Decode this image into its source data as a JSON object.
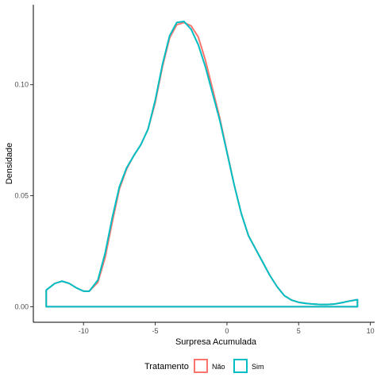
{
  "chart_data": {
    "type": "area",
    "xlabel": "Surpresa Acumulada",
    "ylabel": "Densidade",
    "xlim": [
      -13.5,
      10.3
    ],
    "ylim": [
      -0.007,
      0.136
    ],
    "x_ticks": [
      -10,
      -5,
      0,
      5,
      10
    ],
    "x_tick_labels": [
      "-10",
      "-5",
      "0",
      "5",
      "10"
    ],
    "y_ticks": [
      0.0,
      0.05,
      0.1
    ],
    "y_tick_labels": [
      "0.00",
      "0.05",
      "0.10"
    ],
    "grid": false,
    "legend": {
      "title": "Tratamento",
      "position": "bottom",
      "entries": [
        {
          "label": "Não",
          "color": "#F8766D"
        },
        {
          "label": "Sim",
          "color": "#00BFC4"
        }
      ]
    },
    "series": [
      {
        "name": "Não",
        "color": "#F8766D",
        "x": [
          -12.6,
          -12.0,
          -11.5,
          -11.0,
          -10.5,
          -10.0,
          -9.6,
          -9.0,
          -8.5,
          -8.0,
          -7.5,
          -7.0,
          -6.5,
          -6.0,
          -5.5,
          -5.0,
          -4.5,
          -4.0,
          -3.5,
          -3.0,
          -2.5,
          -2.0,
          -1.5,
          -1.0,
          -0.5,
          0.0,
          0.5,
          1.0,
          1.5,
          2.0,
          2.5,
          3.0,
          3.5,
          4.0,
          4.5,
          5.0,
          5.5,
          6.0,
          6.5,
          7.0,
          7.5,
          8.0,
          8.5,
          9.1
        ],
        "y": [
          0.0075,
          0.0105,
          0.0115,
          0.0105,
          0.0085,
          0.007,
          0.007,
          0.011,
          0.022,
          0.038,
          0.053,
          0.062,
          0.068,
          0.073,
          0.08,
          0.092,
          0.108,
          0.121,
          0.127,
          0.128,
          0.1265,
          0.1215,
          0.111,
          0.098,
          0.085,
          0.07,
          0.055,
          0.042,
          0.032,
          0.026,
          0.02,
          0.014,
          0.009,
          0.005,
          0.003,
          0.002,
          0.0015,
          0.0012,
          0.001,
          0.001,
          0.0012,
          0.0018,
          0.0025,
          0.0032
        ]
      },
      {
        "name": "Sim",
        "color": "#00BFC4",
        "x": [
          -12.6,
          -12.0,
          -11.5,
          -11.0,
          -10.5,
          -10.0,
          -9.6,
          -9.0,
          -8.5,
          -8.0,
          -7.5,
          -7.0,
          -6.5,
          -6.0,
          -5.5,
          -5.0,
          -4.5,
          -4.0,
          -3.5,
          -3.0,
          -2.5,
          -2.0,
          -1.5,
          -1.0,
          -0.5,
          0.0,
          0.5,
          1.0,
          1.5,
          2.0,
          2.5,
          3.0,
          3.5,
          4.0,
          4.5,
          5.0,
          5.5,
          6.0,
          6.5,
          7.0,
          7.5,
          8.0,
          8.5,
          9.1
        ],
        "y": [
          0.0075,
          0.0105,
          0.0115,
          0.0105,
          0.0085,
          0.007,
          0.007,
          0.012,
          0.024,
          0.04,
          0.054,
          0.0625,
          0.068,
          0.073,
          0.08,
          0.093,
          0.109,
          0.122,
          0.128,
          0.1285,
          0.125,
          0.118,
          0.108,
          0.096,
          0.084,
          0.0695,
          0.055,
          0.042,
          0.032,
          0.026,
          0.02,
          0.014,
          0.009,
          0.005,
          0.003,
          0.002,
          0.0015,
          0.0012,
          0.001,
          0.001,
          0.0012,
          0.0018,
          0.0025,
          0.0032
        ]
      }
    ]
  }
}
